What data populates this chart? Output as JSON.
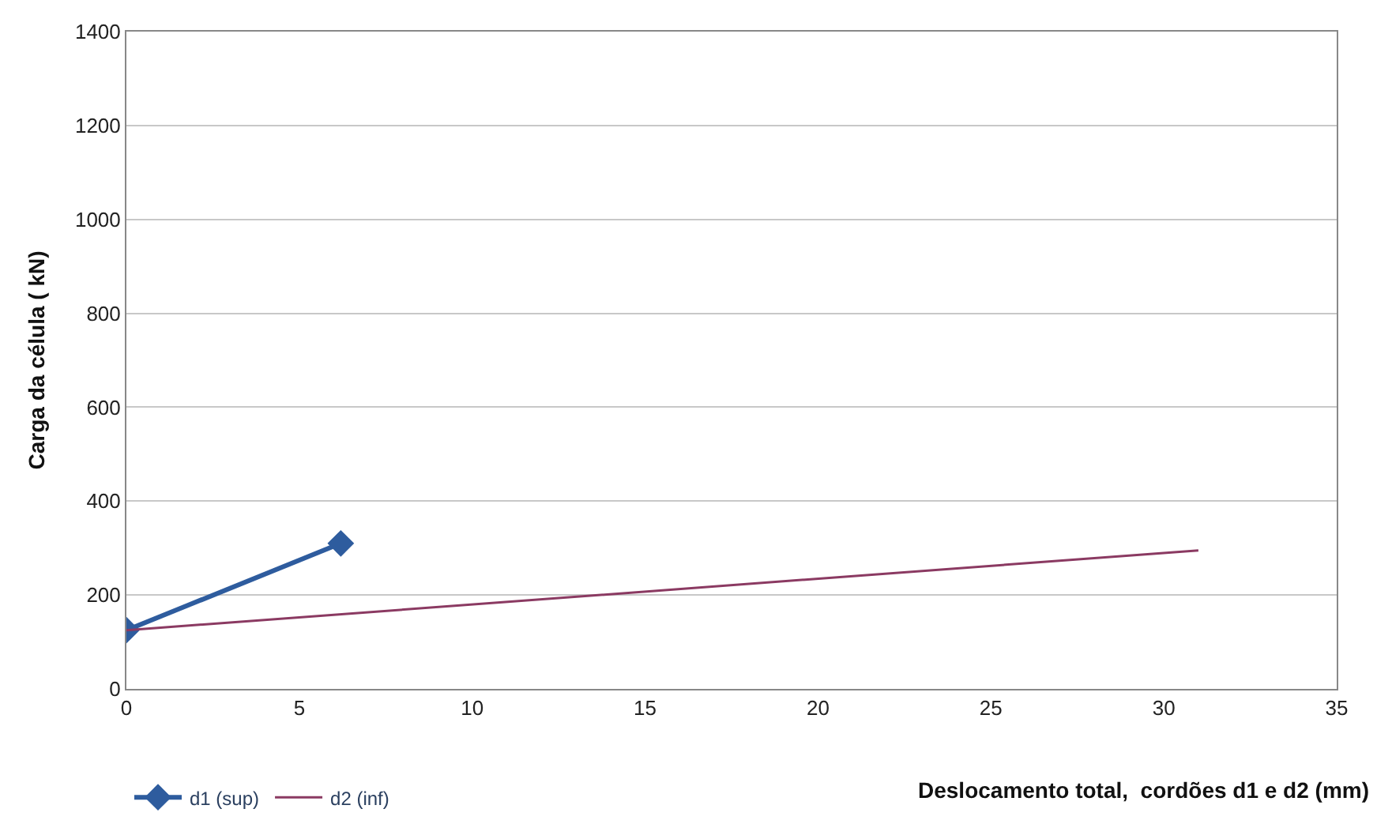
{
  "chart_data": {
    "type": "line",
    "ylabel": "Carga da célula ( kN)",
    "xlabel": "Deslocamento total,  cordões d1 e d2 (mm)",
    "xlim": [
      0,
      35
    ],
    "xticks": [
      0,
      5,
      10,
      15,
      20,
      25,
      30,
      35
    ],
    "ylim": [
      0,
      1400
    ],
    "yticks": [
      0,
      200,
      400,
      600,
      800,
      1000,
      1200,
      1400
    ],
    "grid": "y",
    "legend": "bottom left",
    "series": [
      {
        "name": "d1 (sup)",
        "color": "#2e5c9e",
        "x": [
          0,
          6.2
        ],
        "values": [
          125,
          310
        ],
        "marker": "diamond"
      },
      {
        "name": "d2 (inf)",
        "color": "#8b3a62",
        "x": [
          0,
          31
        ],
        "values": [
          125,
          295
        ],
        "marker": "none"
      }
    ]
  }
}
